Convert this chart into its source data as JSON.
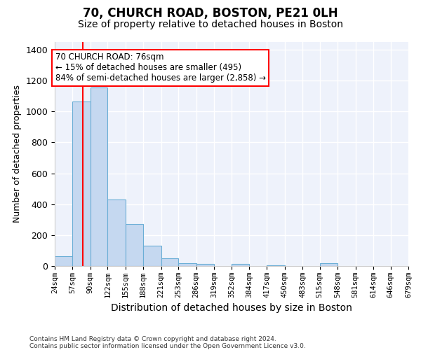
{
  "title1": "70, CHURCH ROAD, BOSTON, PE21 0LH",
  "title2": "Size of property relative to detached houses in Boston",
  "xlabel": "Distribution of detached houses by size in Boston",
  "ylabel": "Number of detached properties",
  "bar_color": "#c5d8f0",
  "bar_edge_color": "#6aaed6",
  "annotation_line_color": "red",
  "property_size": 76,
  "annotation_text": "70 CHURCH ROAD: 76sqm\n← 15% of detached houses are smaller (495)\n84% of semi-detached houses are larger (2,858) →",
  "footer1": "Contains HM Land Registry data © Crown copyright and database right 2024.",
  "footer2": "Contains public sector information licensed under the Open Government Licence v3.0.",
  "bin_edges": [
    24,
    57,
    90,
    122,
    155,
    188,
    221,
    253,
    286,
    319,
    352,
    384,
    417,
    450,
    483,
    515,
    548,
    581,
    614,
    646,
    679
  ],
  "bar_heights": [
    65,
    1065,
    1155,
    430,
    270,
    130,
    50,
    20,
    15,
    0,
    15,
    0,
    3,
    0,
    0,
    20,
    0,
    0,
    0,
    0
  ],
  "ylim": [
    0,
    1450
  ],
  "yticks": [
    0,
    200,
    400,
    600,
    800,
    1000,
    1200,
    1400
  ],
  "background_color": "#eef2fb",
  "grid_color": "#ffffff",
  "title1_fontsize": 12,
  "title2_fontsize": 10
}
